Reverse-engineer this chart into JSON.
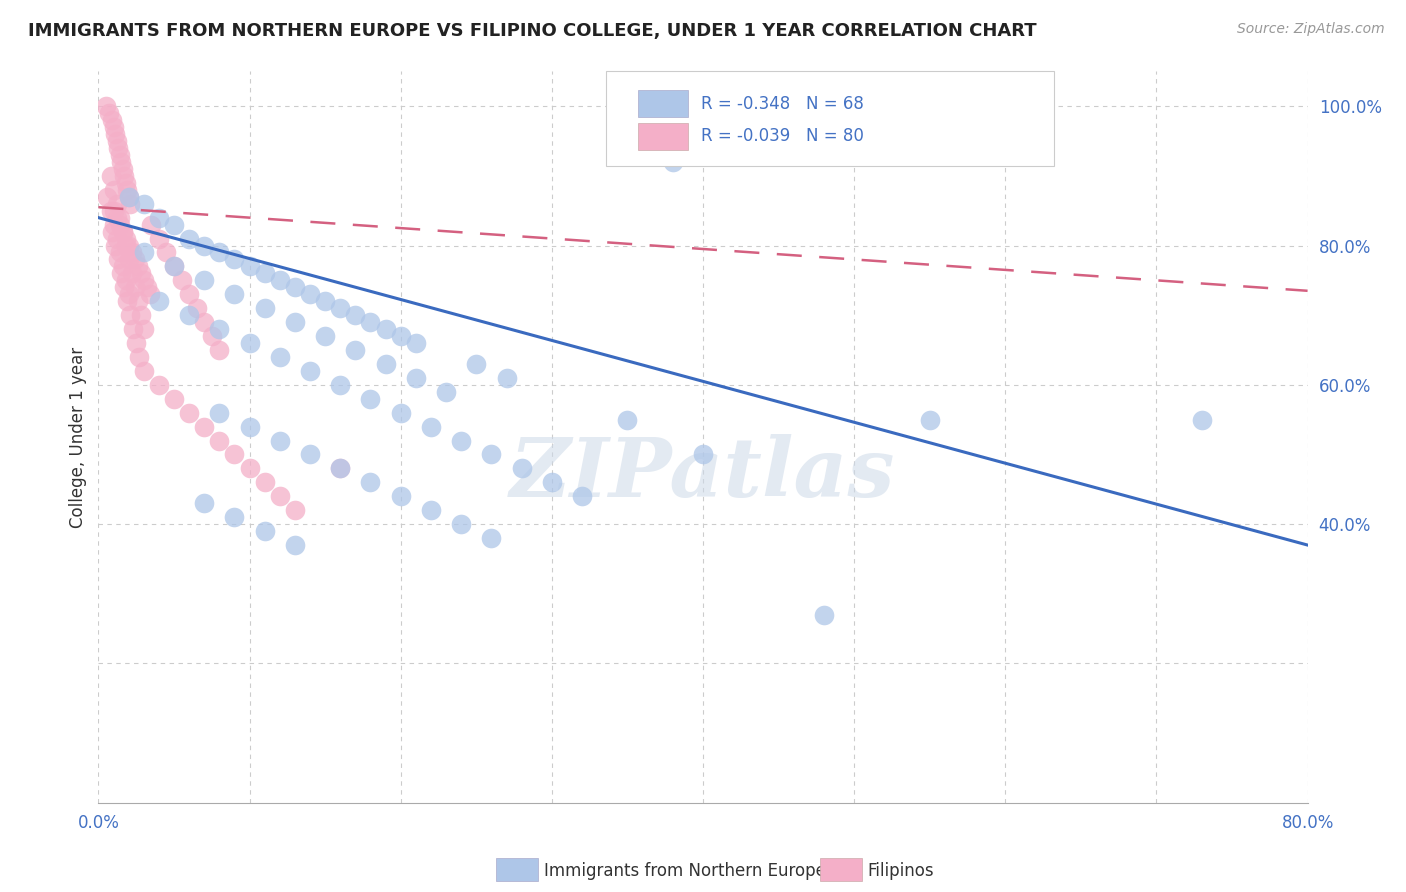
{
  "title": "IMMIGRANTS FROM NORTHERN EUROPE VS FILIPINO COLLEGE, UNDER 1 YEAR CORRELATION CHART",
  "source": "Source: ZipAtlas.com",
  "ylabel": "College, Under 1 year",
  "watermark": "ZIPatlas",
  "legend_r1": "R = -0.348",
  "legend_n1": "N = 68",
  "legend_r2": "R = -0.039",
  "legend_n2": "N = 80",
  "legend_label1": "Immigrants from Northern Europe",
  "legend_label2": "Filipinos",
  "xlim": [
    0.0,
    0.8
  ],
  "ylim": [
    0.0,
    1.05
  ],
  "xtick_positions": [
    0.0,
    0.1,
    0.2,
    0.3,
    0.4,
    0.5,
    0.6,
    0.7,
    0.8
  ],
  "xtick_labels": [
    "0.0%",
    "",
    "",
    "",
    "",
    "",
    "",
    "",
    "80.0%"
  ],
  "ytick_positions": [
    0.2,
    0.4,
    0.6,
    0.8,
    1.0
  ],
  "ytick_labels": [
    "",
    "40.0%",
    "60.0%",
    "80.0%",
    "100.0%"
  ],
  "blue_color": "#aec6e8",
  "pink_color": "#f4afc8",
  "blue_line_color": "#3a6abf",
  "pink_line_color": "#d46080",
  "grid_color": "#cccccc",
  "background_color": "#ffffff",
  "blue_line_x": [
    0.0,
    0.8
  ],
  "blue_line_y": [
    0.84,
    0.37
  ],
  "pink_line_x": [
    0.0,
    0.8
  ],
  "pink_line_y": [
    0.855,
    0.735
  ],
  "blue_scatter_x": [
    0.02,
    0.03,
    0.04,
    0.05,
    0.06,
    0.07,
    0.08,
    0.09,
    0.1,
    0.11,
    0.12,
    0.13,
    0.14,
    0.15,
    0.16,
    0.17,
    0.18,
    0.19,
    0.2,
    0.21,
    0.03,
    0.05,
    0.07,
    0.09,
    0.11,
    0.13,
    0.15,
    0.17,
    0.19,
    0.21,
    0.04,
    0.06,
    0.08,
    0.1,
    0.12,
    0.14,
    0.16,
    0.18,
    0.2,
    0.22,
    0.24,
    0.26,
    0.28,
    0.3,
    0.32,
    0.25,
    0.27,
    0.23,
    0.35,
    0.4,
    0.38,
    0.55,
    0.73,
    0.48,
    0.08,
    0.1,
    0.12,
    0.14,
    0.16,
    0.18,
    0.2,
    0.22,
    0.24,
    0.26,
    0.07,
    0.09,
    0.11,
    0.13
  ],
  "blue_scatter_y": [
    0.87,
    0.86,
    0.84,
    0.83,
    0.81,
    0.8,
    0.79,
    0.78,
    0.77,
    0.76,
    0.75,
    0.74,
    0.73,
    0.72,
    0.71,
    0.7,
    0.69,
    0.68,
    0.67,
    0.66,
    0.79,
    0.77,
    0.75,
    0.73,
    0.71,
    0.69,
    0.67,
    0.65,
    0.63,
    0.61,
    0.72,
    0.7,
    0.68,
    0.66,
    0.64,
    0.62,
    0.6,
    0.58,
    0.56,
    0.54,
    0.52,
    0.5,
    0.48,
    0.46,
    0.44,
    0.63,
    0.61,
    0.59,
    0.55,
    0.5,
    0.92,
    0.55,
    0.55,
    0.27,
    0.56,
    0.54,
    0.52,
    0.5,
    0.48,
    0.46,
    0.44,
    0.42,
    0.4,
    0.38,
    0.43,
    0.41,
    0.39,
    0.37
  ],
  "pink_scatter_x": [
    0.005,
    0.007,
    0.009,
    0.01,
    0.011,
    0.012,
    0.013,
    0.014,
    0.015,
    0.016,
    0.017,
    0.018,
    0.019,
    0.02,
    0.021,
    0.01,
    0.012,
    0.014,
    0.016,
    0.018,
    0.02,
    0.022,
    0.024,
    0.026,
    0.028,
    0.03,
    0.032,
    0.034,
    0.008,
    0.01,
    0.012,
    0.014,
    0.016,
    0.018,
    0.02,
    0.022,
    0.024,
    0.026,
    0.028,
    0.03,
    0.035,
    0.04,
    0.045,
    0.05,
    0.055,
    0.06,
    0.065,
    0.07,
    0.075,
    0.08,
    0.009,
    0.011,
    0.013,
    0.015,
    0.017,
    0.019,
    0.021,
    0.023,
    0.025,
    0.027,
    0.006,
    0.008,
    0.01,
    0.012,
    0.014,
    0.016,
    0.018,
    0.02,
    0.03,
    0.04,
    0.05,
    0.06,
    0.07,
    0.08,
    0.09,
    0.1,
    0.11,
    0.12,
    0.13,
    0.16
  ],
  "pink_scatter_y": [
    1.0,
    0.99,
    0.98,
    0.97,
    0.96,
    0.95,
    0.94,
    0.93,
    0.92,
    0.91,
    0.9,
    0.89,
    0.88,
    0.87,
    0.86,
    0.85,
    0.84,
    0.83,
    0.82,
    0.81,
    0.8,
    0.79,
    0.78,
    0.77,
    0.76,
    0.75,
    0.74,
    0.73,
    0.9,
    0.88,
    0.86,
    0.84,
    0.82,
    0.8,
    0.78,
    0.76,
    0.74,
    0.72,
    0.7,
    0.68,
    0.83,
    0.81,
    0.79,
    0.77,
    0.75,
    0.73,
    0.71,
    0.69,
    0.67,
    0.65,
    0.82,
    0.8,
    0.78,
    0.76,
    0.74,
    0.72,
    0.7,
    0.68,
    0.66,
    0.64,
    0.87,
    0.85,
    0.83,
    0.81,
    0.79,
    0.77,
    0.75,
    0.73,
    0.62,
    0.6,
    0.58,
    0.56,
    0.54,
    0.52,
    0.5,
    0.48,
    0.46,
    0.44,
    0.42,
    0.48
  ]
}
